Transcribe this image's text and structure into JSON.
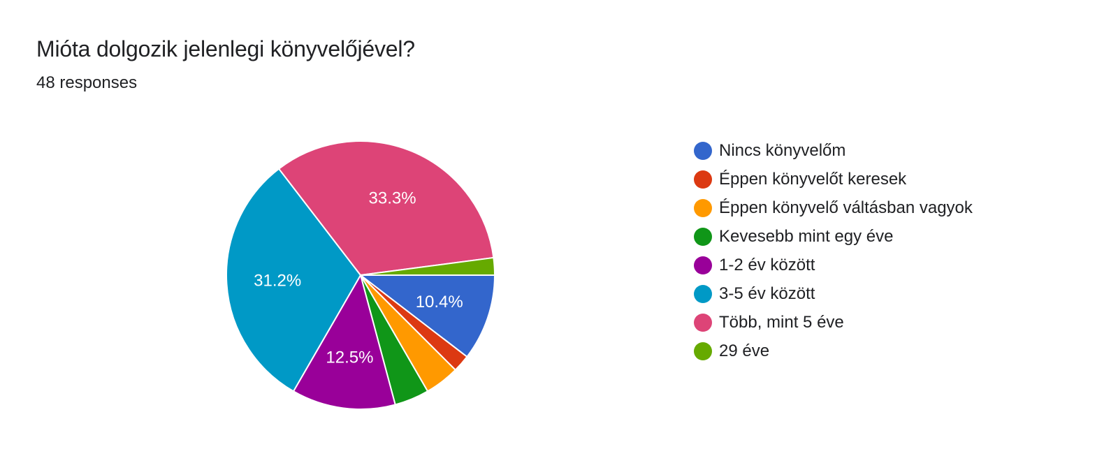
{
  "header": {
    "title": "Mióta dolgozik jelenlegi könyvelőjével?",
    "subtitle": "48 responses"
  },
  "chart_data": {
    "type": "pie",
    "title": "Mióta dolgozik jelenlegi könyvelőjével?",
    "total_responses": 48,
    "categories": [
      "Nincs könyvelőm",
      "Éppen könyvelőt keresek",
      "Éppen könyvelő váltásban vagyok",
      "Kevesebb mint egy éve",
      "1-2 év között",
      "3-5 év között",
      "Több, mint 5 éve",
      "29 éve"
    ],
    "values": [
      5,
      1,
      2,
      2,
      6,
      15,
      16,
      1
    ],
    "data_labels": [
      "10.4%",
      "",
      "",
      "",
      "12.5%",
      "31.2%",
      "33.3%",
      ""
    ],
    "colors": [
      "#3366cc",
      "#dc3912",
      "#ff9900",
      "#109618",
      "#990099",
      "#0099c6",
      "#dd4477",
      "#66aa00"
    ],
    "legend_position": "right",
    "start_angle": "3 o'clock",
    "direction": "clockwise"
  }
}
